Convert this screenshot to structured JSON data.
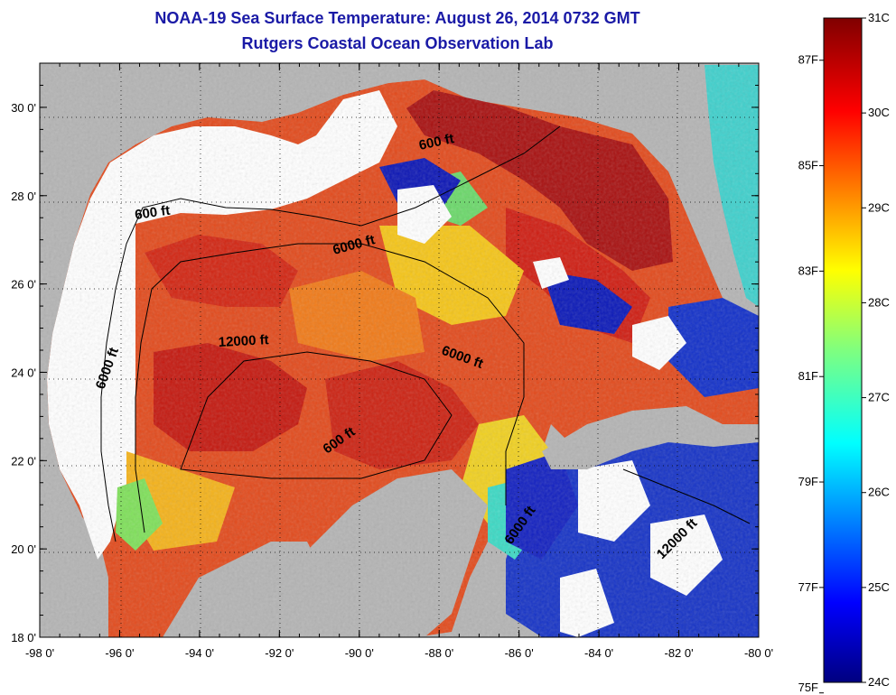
{
  "title": {
    "line1": "NOAA-19 Sea Surface Temperature:  August 26, 2014 0732 GMT",
    "line2": "Rutgers Coastal Ocean Observation Lab"
  },
  "map": {
    "lon_ticks": [
      "-98 0'",
      "-96 0'",
      "-94 0'",
      "-92 0'",
      "-90 0'",
      "-88 0'",
      "-86 0'",
      "-84 0'",
      "-82 0'",
      "-80 0'"
    ],
    "lat_ticks": [
      "18 0'",
      "20 0'",
      "22 0'",
      "24 0'",
      "26 0'",
      "28 0'",
      "30 0'"
    ],
    "lon_range": [
      -98,
      -80
    ],
    "lat_range": [
      18,
      31
    ],
    "contour_labels": [
      "600 ft",
      "600 ft",
      "6000 ft",
      "12000 ft",
      "6000 ft",
      "6000 ft",
      "600 ft",
      "6000 ft",
      "12000 ft"
    ],
    "colors": {
      "land": "#b4b4b4",
      "no_data": "#ffffff",
      "cold": "#0a10a8",
      "warm": "#e8301a",
      "hot": "#9c0d0d"
    }
  },
  "colorbar": {
    "celsius_labels": [
      "31C",
      "30C",
      "29C",
      "28C",
      "27C",
      "26C",
      "25C",
      "24C"
    ],
    "fahrenheit_labels": [
      "87F",
      "85F",
      "83F",
      "81F",
      "79F",
      "77F",
      "75F"
    ],
    "celsius_range": [
      24,
      31
    ],
    "colormap": "jet"
  }
}
